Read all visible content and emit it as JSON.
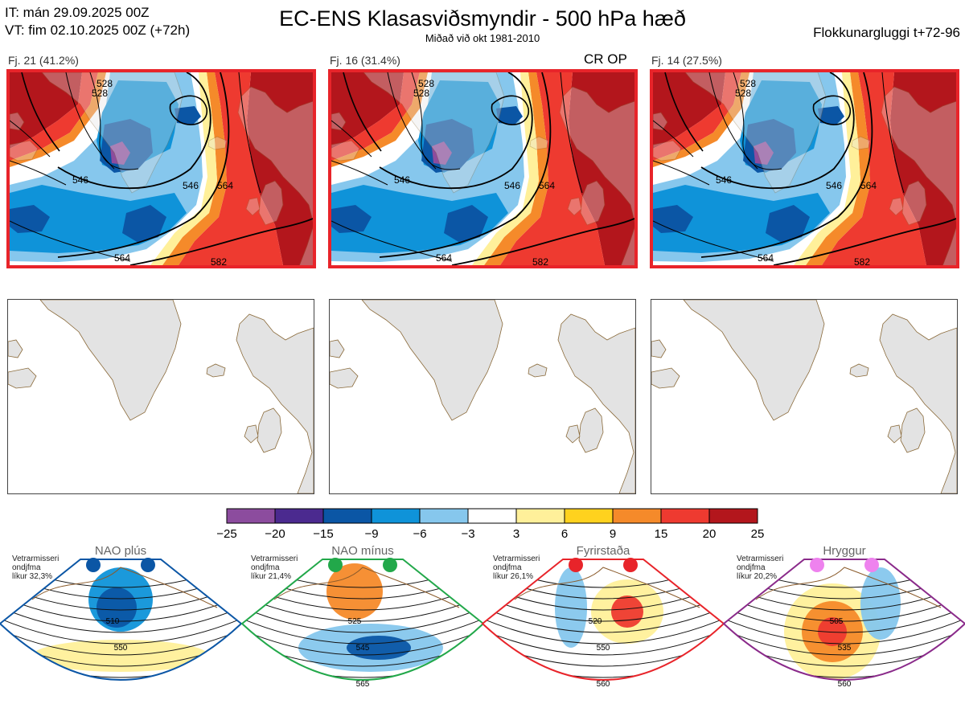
{
  "header": {
    "it_line": "IT: mán 29.09.2025 00Z",
    "vt_line": "VT: fim 02.10.2025 00Z  (+72h)",
    "title": "EC-ENS Klasasviðsmyndir - 500 hPa hæð",
    "subtitle": "Miðað við okt 1981-2010",
    "window": "Flokkunargluggi t+72-96"
  },
  "panels": [
    {
      "label": "Fj. 21 (41.2%)",
      "contours": [
        "546",
        "528",
        "546",
        "564",
        "564",
        "582",
        "528",
        "546"
      ]
    },
    {
      "label": "Fj. 16 (31.4%)",
      "badge": "CR OP",
      "contours": [
        "546",
        "528",
        "546",
        "564",
        "564",
        "582",
        "528",
        "546"
      ]
    },
    {
      "label": "Fj. 14 (27.5%)",
      "contours": [
        "546",
        "528",
        "546",
        "564",
        "564",
        "582",
        "528",
        "546"
      ]
    }
  ],
  "colorbar": {
    "ticks": [
      "−25",
      "−20",
      "−15",
      "−9",
      "−6",
      "−3",
      "3",
      "6",
      "9",
      "15",
      "20",
      "25"
    ],
    "colors": [
      "#8c4c9e",
      "#4b2a8f",
      "#0b56a5",
      "#0f93d9",
      "#86c7ed",
      "#ffffff",
      "#fff09a",
      "#ffd21e",
      "#f58a2a",
      "#ee3a30",
      "#b3161c"
    ]
  },
  "regimes": [
    {
      "name": "NAO plús",
      "info": [
        "Vetrarmisseri",
        "ondjfma",
        "líkur 32,3%"
      ],
      "border": "#0b56a5",
      "dot": "#0b56a5",
      "contours": [
        "510",
        "550"
      ]
    },
    {
      "name": "NAO mínus",
      "info": [
        "Vetrarmisseri",
        "ondjfma",
        "líkur 21,4%"
      ],
      "border": "#22a84a",
      "dot": "#22a84a",
      "contours": [
        "525",
        "545",
        "565"
      ]
    },
    {
      "name": "Fyrirstaða",
      "info": [
        "Vetrarmisseri",
        "ondjfma",
        "líkur 26,1%"
      ],
      "border": "#e8242a",
      "dot": "#e8242a",
      "contours": [
        "520",
        "550",
        "560"
      ]
    },
    {
      "name": "Hryggur",
      "info": [
        "Vetrarmisseri",
        "ondjfma",
        "líkur 20,2%"
      ],
      "border": "#8a2a8a",
      "dot": "#ee82ee",
      "contours": [
        "505",
        "535",
        "560"
      ]
    }
  ]
}
